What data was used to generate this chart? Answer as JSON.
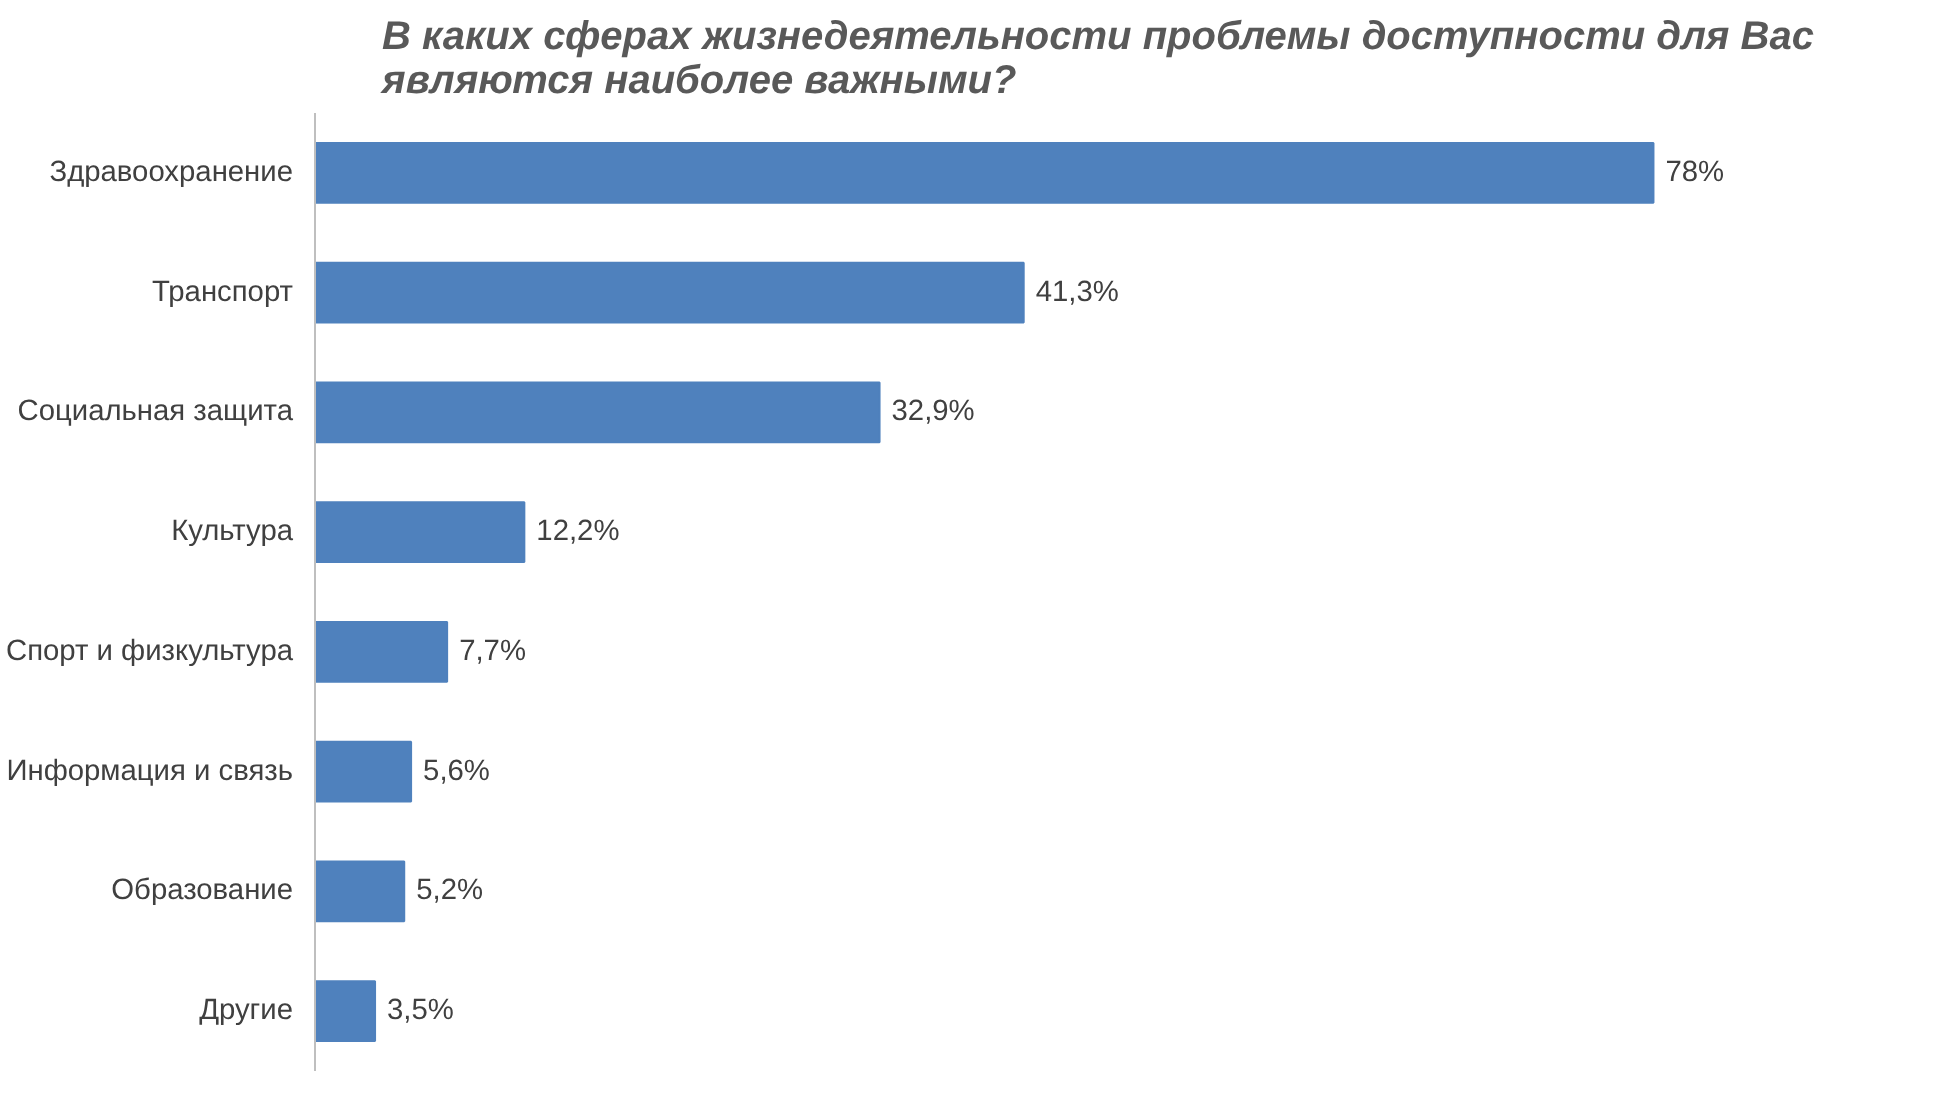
{
  "chart_data": {
    "type": "bar",
    "orientation": "horizontal",
    "title": "В каких сферах жизнедеятельности проблемы доступности для Вас\nявляются наиболее важными?",
    "categories": [
      "Здравоохранение",
      "Транспорт",
      "Социальная защита",
      "Культура",
      "Спорт и физкультура",
      "Информация и связь",
      "Образование",
      "Другие"
    ],
    "values": [
      78,
      41.3,
      32.9,
      12.2,
      7.7,
      5.6,
      5.2,
      3.5
    ],
    "value_labels": [
      "78%",
      "41,3%",
      "32,9%",
      "12,2%",
      "7,7%",
      "5,6%",
      "5,2%",
      "3,5%"
    ],
    "color": "#4f81bd",
    "tick_labels": "y",
    "grid": false
  }
}
